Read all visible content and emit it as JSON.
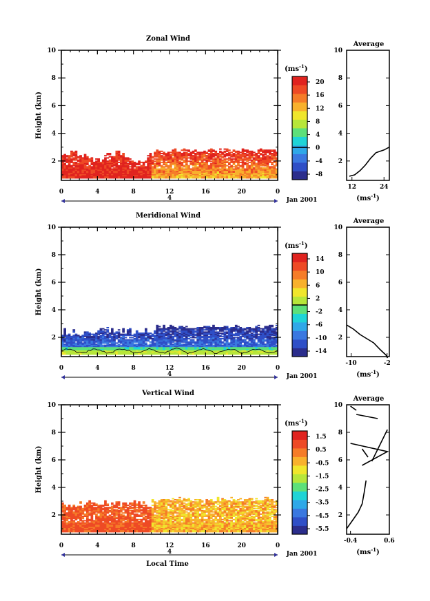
{
  "chart_data": [
    {
      "type": "heatmap",
      "title": "Zonal Wind",
      "ylabel": "Height (km)",
      "x_ticks": [
        "0",
        "4",
        "8",
        "12",
        "16",
        "20",
        "0"
      ],
      "xlim": [
        0,
        24
      ],
      "y_ticks": [
        "2",
        "4",
        "6",
        "8",
        "10"
      ],
      "ylim": [
        0.6,
        10
      ],
      "day_label": "4",
      "date_label": "Jan 2001",
      "colorbar": {
        "unit_label": "(ms⁻¹)",
        "tick_labels": [
          "20",
          "16",
          "12",
          "8",
          "4",
          "0",
          "-4",
          "-8"
        ],
        "range": [
          -10,
          22
        ],
        "marker": 0,
        "colors": [
          "#2b2d8c",
          "#2f4fc7",
          "#3a78e0",
          "#2fa8e8",
          "#1fd4d6",
          "#5de07a",
          "#b7e63a",
          "#f0e62c",
          "#f8b12c",
          "#f57c28",
          "#ee4a25",
          "#e0231f"
        ]
      },
      "avg_panel": {
        "title": "Average",
        "x_ticks": [
          "12",
          "24"
        ],
        "xlim": [
          10,
          26
        ],
        "unit_label": "(ms⁻¹)",
        "profile": [
          [
            11,
            0.9
          ],
          [
            13,
            1.0
          ],
          [
            15,
            1.3
          ],
          [
            17,
            1.7
          ],
          [
            19,
            2.2
          ],
          [
            21,
            2.6
          ],
          [
            24,
            2.8
          ],
          [
            26,
            3.0
          ]
        ]
      }
    },
    {
      "type": "heatmap",
      "title": "Meridional Wind",
      "ylabel": "Height (km)",
      "x_ticks": [
        "0",
        "4",
        "8",
        "12",
        "16",
        "20",
        "0"
      ],
      "xlim": [
        0,
        24
      ],
      "y_ticks": [
        "2",
        "4",
        "6",
        "8",
        "10"
      ],
      "ylim": [
        0.6,
        10
      ],
      "day_label": "4",
      "date_label": "Jan 2001",
      "colorbar": {
        "unit_label": "(ms⁻¹)",
        "tick_labels": [
          "14",
          "10",
          "6",
          "2",
          "-2",
          "-6",
          "-10",
          "-14"
        ],
        "range": [
          -16,
          16
        ],
        "marker": 0,
        "colors": [
          "#2b2d8c",
          "#2f4fc7",
          "#3a78e0",
          "#2fa8e8",
          "#1fd4d6",
          "#5de07a",
          "#b7e63a",
          "#f0e62c",
          "#f8b12c",
          "#f57c28",
          "#ee4a25",
          "#e0231f"
        ]
      },
      "avg_panel": {
        "title": "Average",
        "x_ticks": [
          "-10",
          "-2"
        ],
        "xlim": [
          -11,
          -1.5
        ],
        "unit_label": "(ms⁻¹)",
        "profile": [
          [
            -11,
            2.9
          ],
          [
            -9.5,
            2.6
          ],
          [
            -8,
            2.2
          ],
          [
            -6.5,
            1.9
          ],
          [
            -5,
            1.6
          ],
          [
            -3.5,
            1.1
          ],
          [
            -2.2,
            0.7
          ],
          [
            -1.9,
            0.5
          ]
        ]
      }
    },
    {
      "type": "heatmap",
      "title": "Vertical Wind",
      "ylabel": "Height (km)",
      "xlabel": "Local Time",
      "x_ticks": [
        "0",
        "4",
        "8",
        "12",
        "16",
        "20",
        "0"
      ],
      "xlim": [
        0,
        24
      ],
      "y_ticks": [
        "2",
        "4",
        "6",
        "8",
        "10"
      ],
      "ylim": [
        0.6,
        10
      ],
      "day_label": "4",
      "date_label": "Jan 2001",
      "colorbar": {
        "unit_label": "(ms⁻¹)",
        "tick_labels": [
          "1.5",
          "0.5",
          "-0.5",
          "-1.5",
          "-2.5",
          "-3.5",
          "-4.5",
          "-5.5"
        ],
        "range": [
          -6.5,
          2.5
        ],
        "colors": [
          "#2b2d8c",
          "#2f4fc7",
          "#3a78e0",
          "#2fa8e8",
          "#1fd4d6",
          "#5de07a",
          "#b7e63a",
          "#f0e62c",
          "#f8b12c",
          "#f57c28",
          "#ee4a25",
          "#e0231f"
        ]
      },
      "avg_panel": {
        "title": "Average",
        "x_ticks": [
          "-0.4",
          "0.6"
        ],
        "xlim": [
          -0.5,
          0.6
        ],
        "unit_label": "(ms⁻¹)",
        "profile": [
          [
            -0.5,
            1.0
          ],
          [
            -0.35,
            1.6
          ],
          [
            -0.2,
            2.2
          ],
          [
            -0.1,
            2.8
          ],
          [
            -0.05,
            3.6
          ],
          [
            0.0,
            4.5
          ]
        ],
        "segments": [
          [
            [
              -0.4,
              9.9
            ],
            [
              -0.25,
              9.6
            ]
          ],
          [
            [
              -0.25,
              9.3
            ],
            [
              0.3,
              9.0
            ]
          ],
          [
            [
              -0.4,
              7.2
            ],
            [
              0.55,
              6.6
            ],
            [
              -0.1,
              5.6
            ]
          ],
          [
            [
              0.15,
              5.9
            ],
            [
              0.55,
              8.2
            ]
          ],
          [
            [
              0.05,
              6.2
            ],
            [
              -0.1,
              6.8
            ]
          ]
        ]
      }
    }
  ]
}
